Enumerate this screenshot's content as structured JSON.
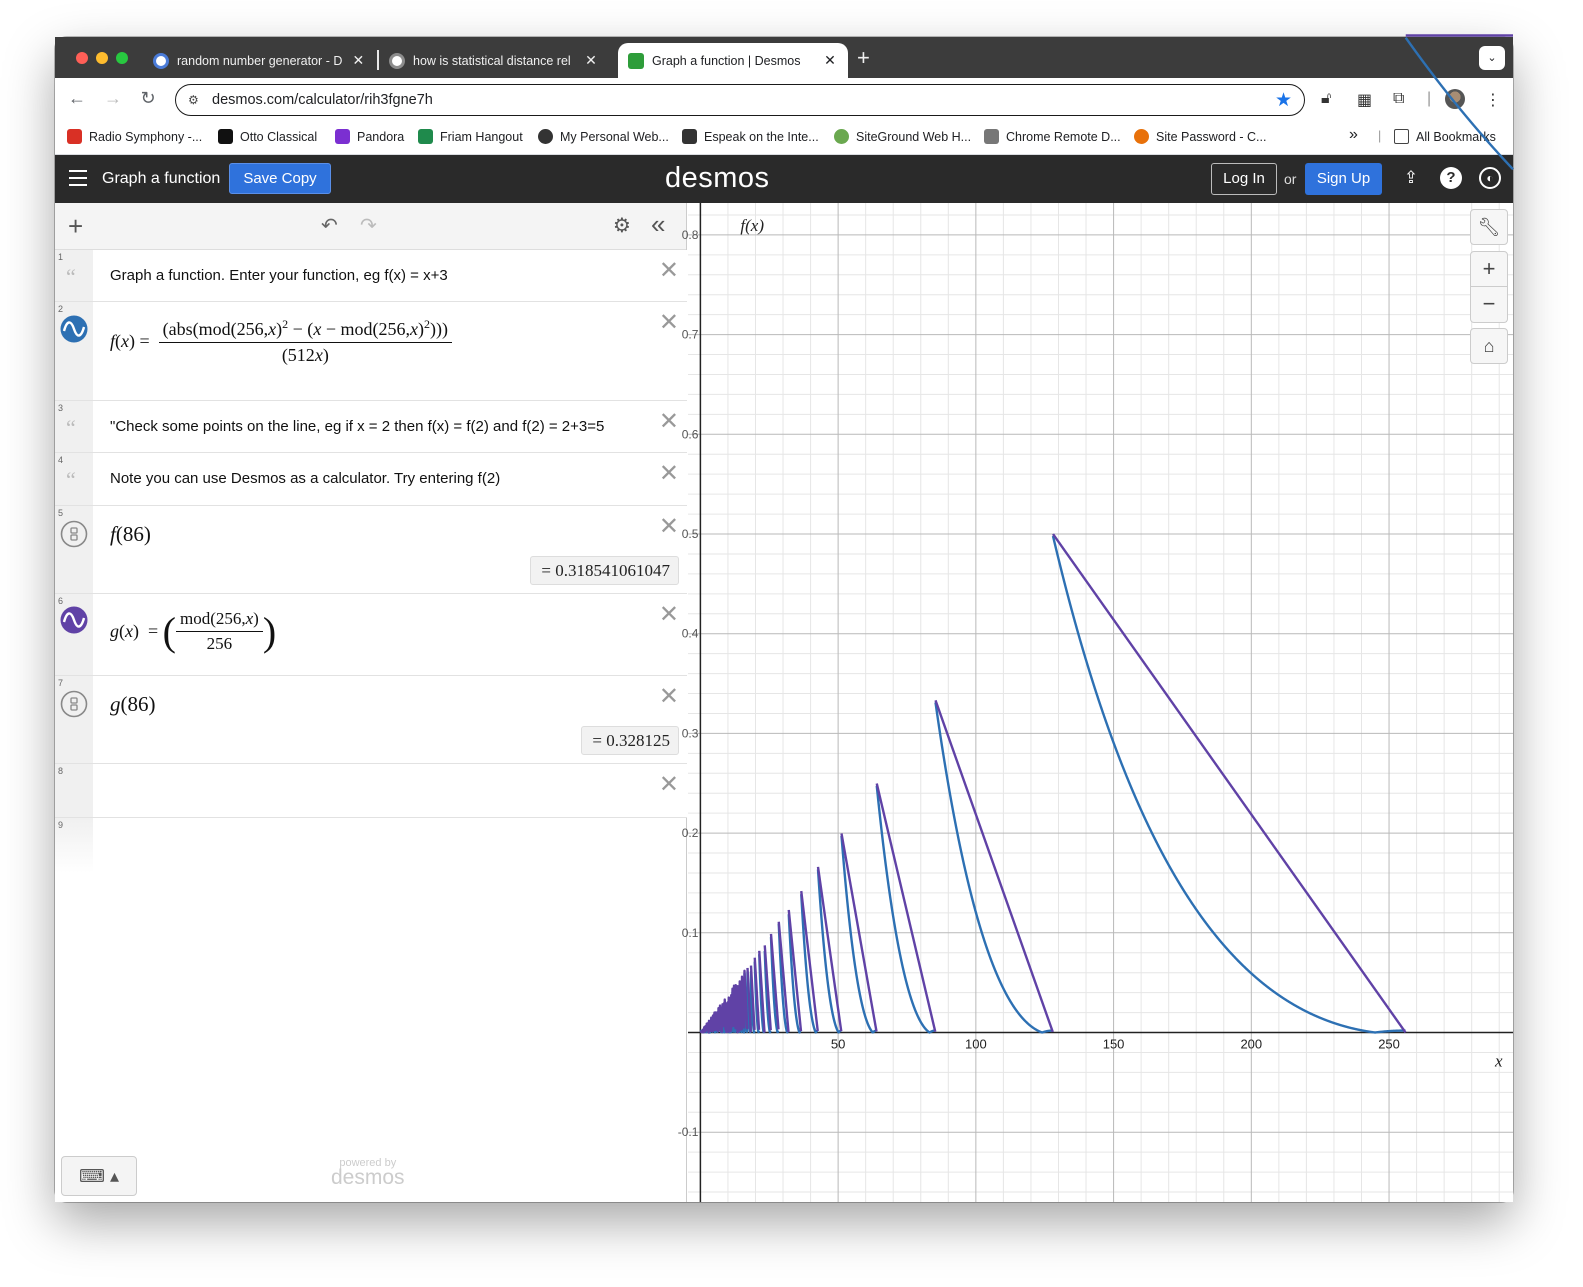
{
  "browser": {
    "tabs": [
      {
        "title": "random number generator - D",
        "favicon_color": "#4a7bd8"
      },
      {
        "title": "how is statistical distance rel",
        "favicon_color": "#8c8c8c"
      },
      {
        "title": "Graph a function | Desmos",
        "favicon_color": "#2e9d3a"
      }
    ],
    "url": "desmos.com/calculator/rih3fgne7h",
    "bookmarks": [
      {
        "label": "Radio Symphony -...",
        "color": "#d93025"
      },
      {
        "label": "Otto Classical",
        "color": "#111111"
      },
      {
        "label": "Pandora",
        "color": "#7b2fd1"
      },
      {
        "label": "Friam Hangout",
        "color": "#1f8a4c"
      },
      {
        "label": "My Personal Web...",
        "color": "#333333"
      },
      {
        "label": "Espeak on the Inte...",
        "color": "#333333"
      },
      {
        "label": "SiteGround Web H...",
        "color": "#6aa84f"
      },
      {
        "label": "Chrome Remote D...",
        "color": "#777777"
      },
      {
        "label": "Site Password - C...",
        "color": "#e8710a"
      }
    ],
    "bookmarks_more": "»",
    "all_bookmarks": "All Bookmarks"
  },
  "desmos": {
    "title": "Graph a function",
    "save_copy": "Save Copy",
    "logo": "desmos",
    "log_in": "Log In",
    "or": "or",
    "sign_up": "Sign Up",
    "powered_by": "powered by",
    "powered_logo": "desmos"
  },
  "expressions": [
    {
      "num": "1",
      "type": "note",
      "text": "Graph a function. Enter your function, eg f(x) = x+3"
    },
    {
      "num": "2",
      "type": "expression",
      "latex": "f(x) = (abs(mod(256,x)^2 − (x − mod(256,x)^2)))/(512x)",
      "color": "#2d70b3"
    },
    {
      "num": "3",
      "type": "note",
      "text": "\"Check some points on the line, eg if x = 2 then f(x) = f(2) and f(2) = 2+3=5"
    },
    {
      "num": "4",
      "type": "note",
      "text": "Note you can use Desmos as a calculator. Try entering f(2)"
    },
    {
      "num": "5",
      "type": "evaluation",
      "expr_fn": "f",
      "expr_arg": "86",
      "result": "= 0.318541061047"
    },
    {
      "num": "6",
      "type": "expression",
      "latex": "g(x) = (mod(256,x)/256)",
      "color": "#6042a6"
    },
    {
      "num": "7",
      "type": "evaluation",
      "expr_fn": "g",
      "expr_arg": "86",
      "result": "= 0.328125"
    },
    {
      "num": "8",
      "type": "empty"
    },
    {
      "num": "9",
      "type": "empty"
    }
  ],
  "graph": {
    "x_axis_label": "x",
    "y_axis_label": "f(x)",
    "x_ticks": [
      "50",
      "100",
      "150",
      "200",
      "250"
    ],
    "y_ticks": [
      "0.8",
      "0.7",
      "0.6",
      "0.5",
      "0.4",
      "0.3",
      "0.2",
      "0.1",
      "-0.1"
    ],
    "x_range": [
      -4.5,
      295
    ],
    "y_range": [
      -0.17,
      0.832
    ],
    "series_colors": {
      "f": "#2d70b3",
      "g": "#6042a6"
    }
  }
}
